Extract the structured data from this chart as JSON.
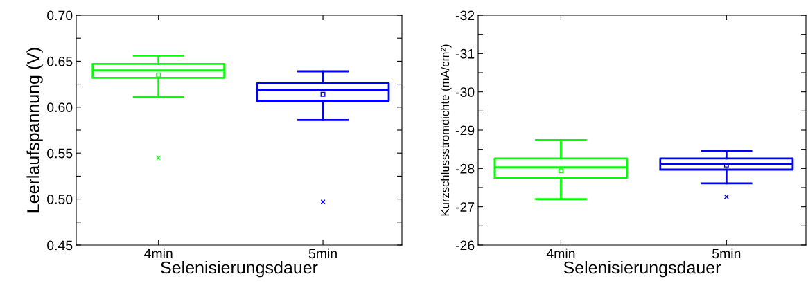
{
  "chart_data": [
    {
      "type": "box",
      "xlabel": "Selenisierungsdauer",
      "ylabel": "Leerlaufspannung (V)",
      "categories": [
        "4min",
        "5min"
      ],
      "colors": [
        "#00ff00",
        "#0000ff"
      ],
      "boxes": [
        {
          "low": 0.611,
          "q1": 0.632,
          "median": 0.64,
          "q3": 0.647,
          "high": 0.656,
          "mean": 0.635,
          "outliers": [
            0.545
          ]
        },
        {
          "low": 0.586,
          "q1": 0.607,
          "median": 0.619,
          "q3": 0.626,
          "high": 0.639,
          "mean": 0.614,
          "outliers": [
            0.497
          ]
        }
      ],
      "ylim": [
        0.45,
        0.7
      ],
      "yticks": [
        {
          "value": 0.45,
          "label": "0.45"
        },
        {
          "value": 0.475,
          "label": null
        },
        {
          "value": 0.5,
          "label": "0.50"
        },
        {
          "value": 0.525,
          "label": null
        },
        {
          "value": 0.55,
          "label": "0.55"
        },
        {
          "value": 0.575,
          "label": null
        },
        {
          "value": 0.6,
          "label": "0.60"
        },
        {
          "value": 0.625,
          "label": null
        },
        {
          "value": 0.65,
          "label": "0.65"
        },
        {
          "value": 0.675,
          "label": null
        },
        {
          "value": 0.7,
          "label": "0.70"
        }
      ],
      "grid": false
    },
    {
      "type": "box",
      "xlabel": "Selenisierungsdauer",
      "ylabel": "Kurzschlussstromdichte (mA/cm²)",
      "categories": [
        "4min",
        "5min"
      ],
      "colors": [
        "#00ff00",
        "#0000ff"
      ],
      "boxes": [
        {
          "low": -27.2,
          "q1": -27.76,
          "median": -28.03,
          "q3": -28.26,
          "high": -28.74,
          "mean": -27.94
        },
        {
          "low": -27.61,
          "q1": -27.97,
          "median": -28.12,
          "q3": -28.26,
          "high": -28.46,
          "mean": -28.09,
          "outliers": [
            -27.26
          ]
        }
      ],
      "ylim": [
        -26,
        -32
      ],
      "yticks": [
        -26,
        {
          "value": -26.5,
          "label": null
        },
        -27,
        {
          "value": -27.5,
          "label": null
        },
        -28,
        {
          "value": -28.5,
          "label": null
        },
        -29,
        {
          "value": -29.5,
          "label": null
        },
        -30,
        {
          "value": -30.5,
          "label": null
        },
        -31,
        {
          "value": -31.5,
          "label": null
        },
        -32
      ],
      "grid": false
    }
  ]
}
